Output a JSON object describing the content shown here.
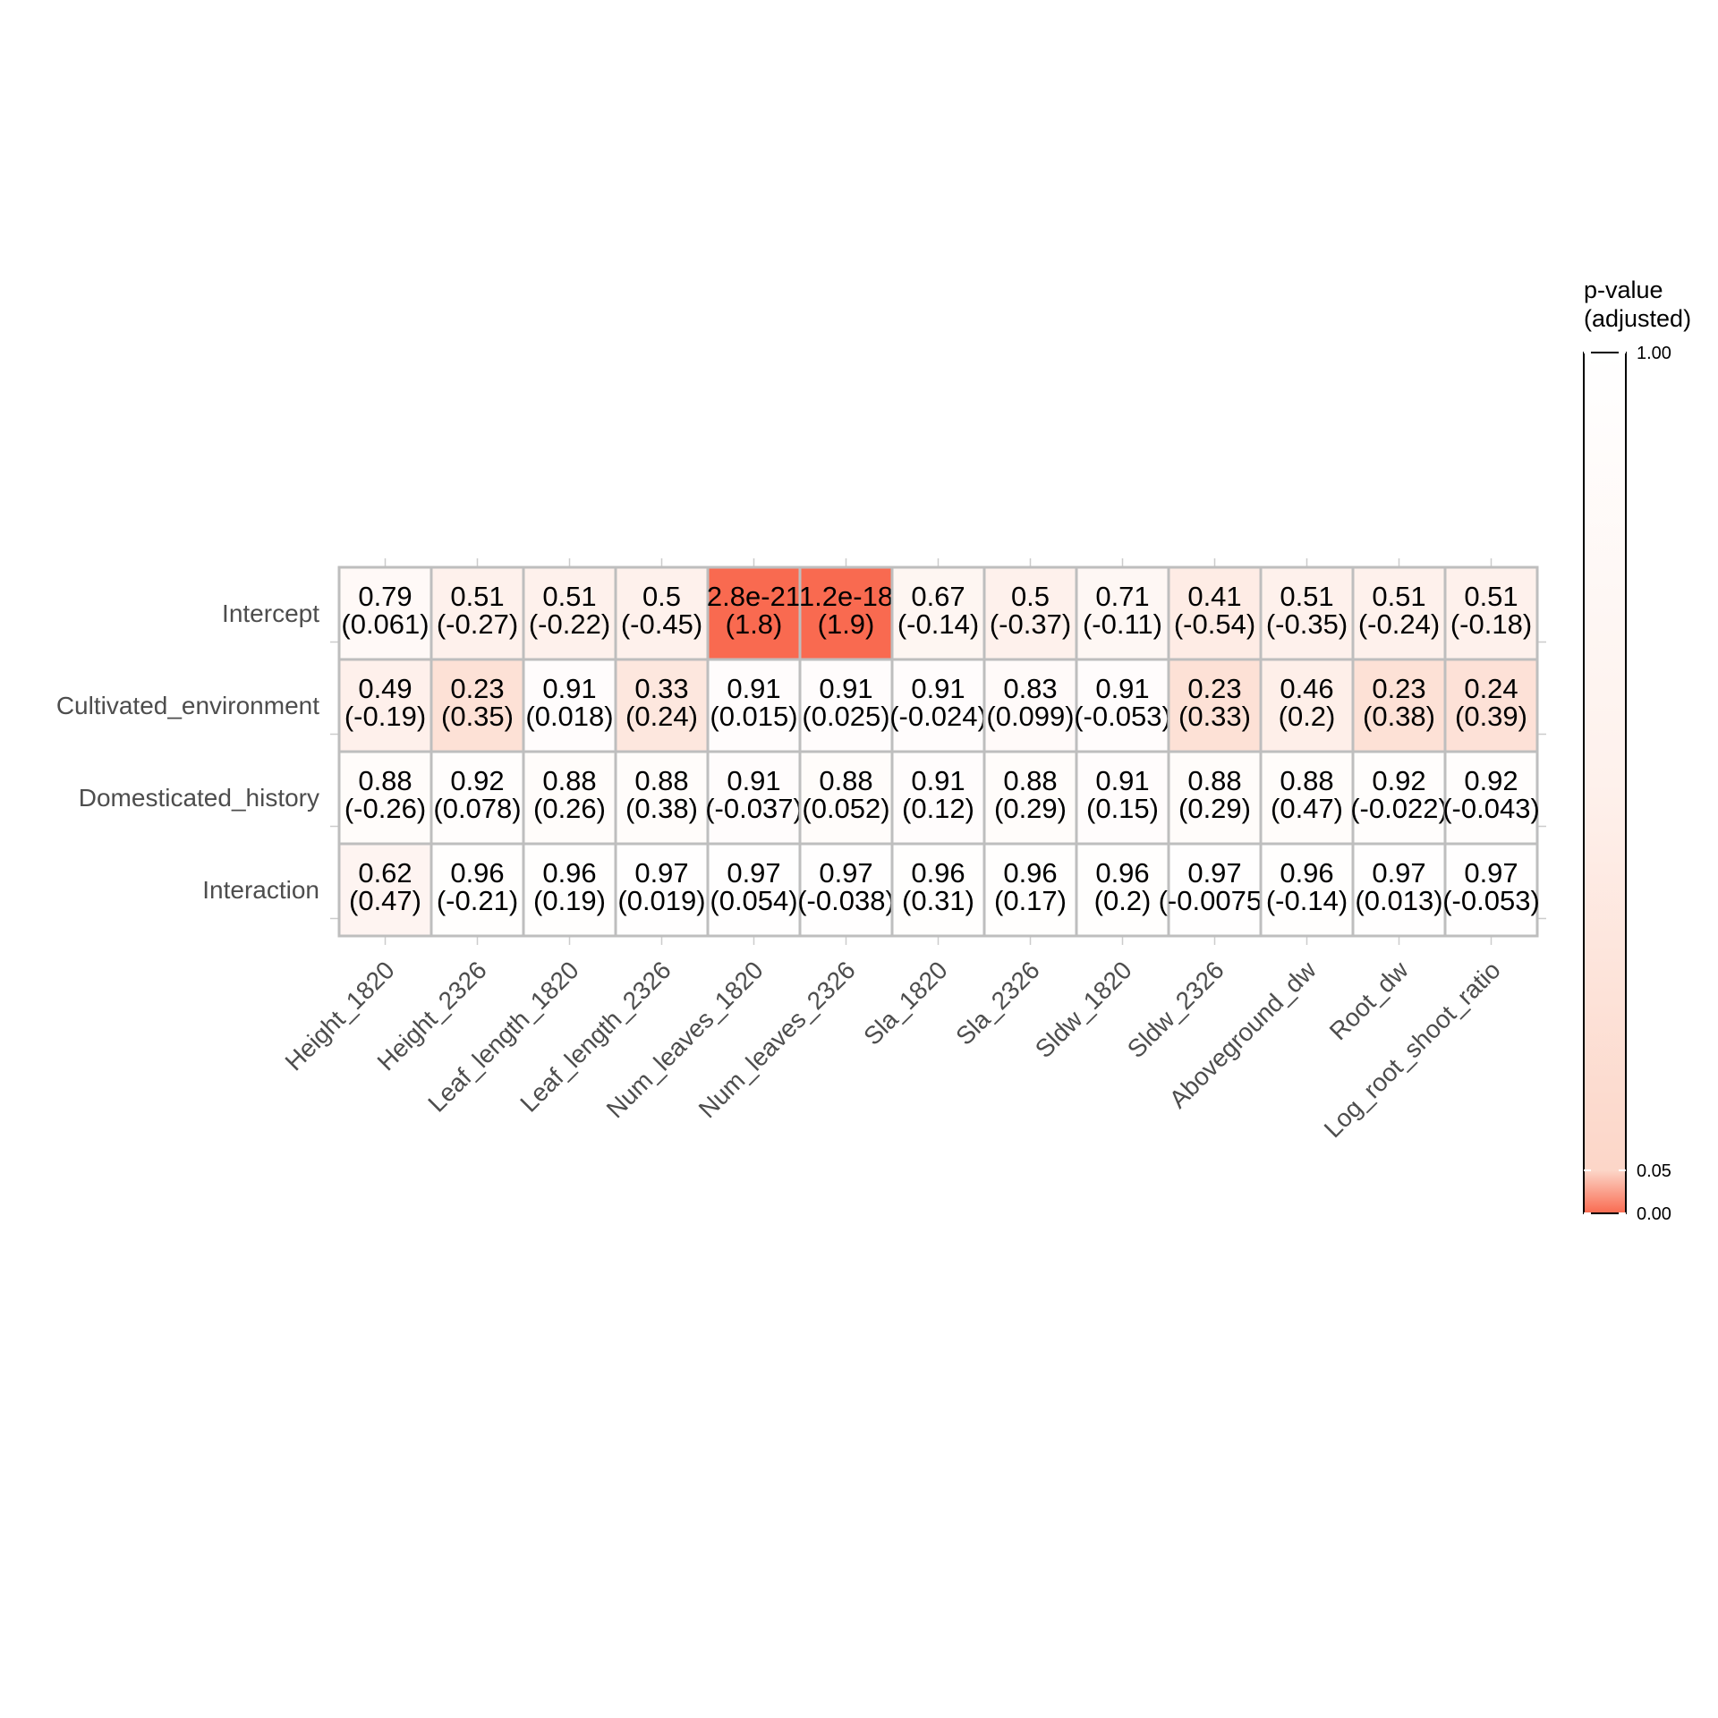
{
  "chart_data": {
    "type": "heatmap",
    "title": "",
    "xlabel": "",
    "ylabel": "",
    "rows": [
      "Intercept",
      "Cultivated_environment",
      "Domesticated_history",
      "Interaction"
    ],
    "columns": [
      "Height_1820",
      "Height_2326",
      "Leaf_length_1820",
      "Leaf_length_2326",
      "Num_leaves_1820",
      "Num_leaves_2326",
      "Sla_1820",
      "Sla_2326",
      "Sldw_1820",
      "Sldw_2326",
      "Aboveground_dw",
      "Root_dw",
      "Log_root_shoot_ratio"
    ],
    "cells": [
      [
        {
          "p_label": "0.79",
          "estimate_label": "(0.061)",
          "p_value": 0.79
        },
        {
          "p_label": "0.51",
          "estimate_label": "(-0.27)",
          "p_value": 0.51
        },
        {
          "p_label": "0.51",
          "estimate_label": "(-0.22)",
          "p_value": 0.51
        },
        {
          "p_label": "0.5",
          "estimate_label": "(-0.45)",
          "p_value": 0.5
        },
        {
          "p_label": "2.8e-21",
          "estimate_label": "(1.8)",
          "p_value": 2.8e-21
        },
        {
          "p_label": "1.2e-18",
          "estimate_label": "(1.9)",
          "p_value": 1.2e-18
        },
        {
          "p_label": "0.67",
          "estimate_label": "(-0.14)",
          "p_value": 0.67
        },
        {
          "p_label": "0.5",
          "estimate_label": "(-0.37)",
          "p_value": 0.5
        },
        {
          "p_label": "0.71",
          "estimate_label": "(-0.11)",
          "p_value": 0.71
        },
        {
          "p_label": "0.41",
          "estimate_label": "(-0.54)",
          "p_value": 0.41
        },
        {
          "p_label": "0.51",
          "estimate_label": "(-0.35)",
          "p_value": 0.51
        },
        {
          "p_label": "0.51",
          "estimate_label": "(-0.24)",
          "p_value": 0.51
        },
        {
          "p_label": "0.51",
          "estimate_label": "(-0.18)",
          "p_value": 0.51
        }
      ],
      [
        {
          "p_label": "0.49",
          "estimate_label": "(-0.19)",
          "p_value": 0.49
        },
        {
          "p_label": "0.23",
          "estimate_label": "(0.35)",
          "p_value": 0.23
        },
        {
          "p_label": "0.91",
          "estimate_label": "(0.018)",
          "p_value": 0.91
        },
        {
          "p_label": "0.33",
          "estimate_label": "(0.24)",
          "p_value": 0.33
        },
        {
          "p_label": "0.91",
          "estimate_label": "(0.015)",
          "p_value": 0.91
        },
        {
          "p_label": "0.91",
          "estimate_label": "(0.025)",
          "p_value": 0.91
        },
        {
          "p_label": "0.91",
          "estimate_label": "(-0.024)",
          "p_value": 0.91
        },
        {
          "p_label": "0.83",
          "estimate_label": "(0.099)",
          "p_value": 0.83
        },
        {
          "p_label": "0.91",
          "estimate_label": "(-0.053)",
          "p_value": 0.91
        },
        {
          "p_label": "0.23",
          "estimate_label": "(0.33)",
          "p_value": 0.23
        },
        {
          "p_label": "0.46",
          "estimate_label": "(0.2)",
          "p_value": 0.46
        },
        {
          "p_label": "0.23",
          "estimate_label": "(0.38)",
          "p_value": 0.23
        },
        {
          "p_label": "0.24",
          "estimate_label": "(0.39)",
          "p_value": 0.24
        }
      ],
      [
        {
          "p_label": "0.88",
          "estimate_label": "(-0.26)",
          "p_value": 0.88
        },
        {
          "p_label": "0.92",
          "estimate_label": "(0.078)",
          "p_value": 0.92
        },
        {
          "p_label": "0.88",
          "estimate_label": "(0.26)",
          "p_value": 0.88
        },
        {
          "p_label": "0.88",
          "estimate_label": "(0.38)",
          "p_value": 0.88
        },
        {
          "p_label": "0.91",
          "estimate_label": "(-0.037)",
          "p_value": 0.91
        },
        {
          "p_label": "0.88",
          "estimate_label": "(0.052)",
          "p_value": 0.88
        },
        {
          "p_label": "0.91",
          "estimate_label": "(0.12)",
          "p_value": 0.91
        },
        {
          "p_label": "0.88",
          "estimate_label": "(0.29)",
          "p_value": 0.88
        },
        {
          "p_label": "0.91",
          "estimate_label": "(0.15)",
          "p_value": 0.91
        },
        {
          "p_label": "0.88",
          "estimate_label": "(0.29)",
          "p_value": 0.88
        },
        {
          "p_label": "0.88",
          "estimate_label": "(0.47)",
          "p_value": 0.88
        },
        {
          "p_label": "0.92",
          "estimate_label": "(-0.022)",
          "p_value": 0.92
        },
        {
          "p_label": "0.92",
          "estimate_label": "(-0.043)",
          "p_value": 0.92
        }
      ],
      [
        {
          "p_label": "0.62",
          "estimate_label": "(0.47)",
          "p_value": 0.62
        },
        {
          "p_label": "0.96",
          "estimate_label": "(-0.21)",
          "p_value": 0.96
        },
        {
          "p_label": "0.96",
          "estimate_label": "(0.19)",
          "p_value": 0.96
        },
        {
          "p_label": "0.97",
          "estimate_label": "(0.019)",
          "p_value": 0.97
        },
        {
          "p_label": "0.97",
          "estimate_label": "(0.054)",
          "p_value": 0.97
        },
        {
          "p_label": "0.97",
          "estimate_label": "(-0.038)",
          "p_value": 0.97
        },
        {
          "p_label": "0.96",
          "estimate_label": "(0.31)",
          "p_value": 0.96
        },
        {
          "p_label": "0.96",
          "estimate_label": "(0.17)",
          "p_value": 0.96
        },
        {
          "p_label": "0.96",
          "estimate_label": "(0.2)",
          "p_value": 0.96
        },
        {
          "p_label": "0.97",
          "estimate_label": "(-0.0075)",
          "p_value": 0.97
        },
        {
          "p_label": "0.96",
          "estimate_label": "(-0.14)",
          "p_value": 0.96
        },
        {
          "p_label": "0.97",
          "estimate_label": "(0.013)",
          "p_value": 0.97
        },
        {
          "p_label": "0.97",
          "estimate_label": "(-0.053)",
          "p_value": 0.97
        }
      ]
    ],
    "legend": {
      "title_lines": [
        "p-value",
        "(adjusted)"
      ],
      "ticks": [
        {
          "label": "1.00",
          "value": 1.0
        },
        {
          "label": "0.05",
          "value": 0.05
        },
        {
          "label": "0.00",
          "value": 0.0
        }
      ],
      "placement": "right"
    },
    "colors": {
      "low": "#f96a50",
      "threshold": "#fcd6c8",
      "high": "#ffffff",
      "cell_border": "#bebebe"
    },
    "color_scale": [
      {
        "value": 0.0,
        "color": "#f96a50"
      },
      {
        "value": 0.05,
        "color": "#fcd6c8"
      },
      {
        "value": 0.5,
        "color": "#fef1ec"
      },
      {
        "value": 1.0,
        "color": "#ffffff"
      }
    ]
  }
}
